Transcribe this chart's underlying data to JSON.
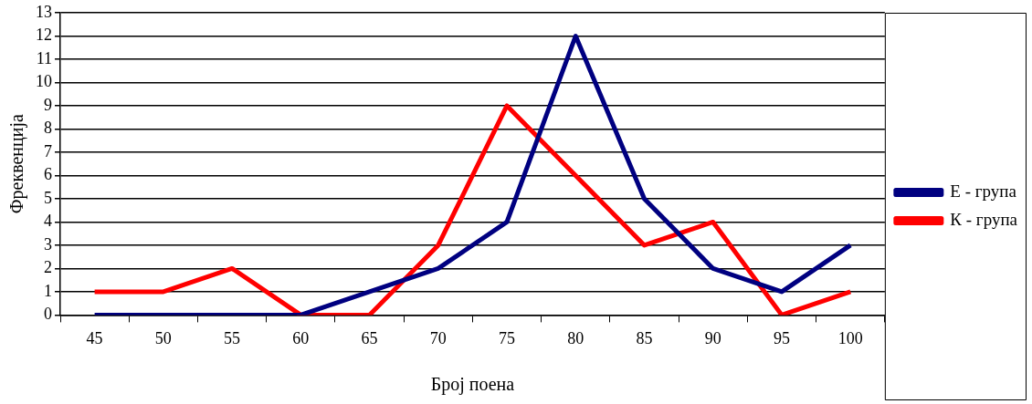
{
  "chart_data": {
    "type": "line",
    "xlabel": "Број поена",
    "ylabel": "Фреквенција",
    "categories": [
      "45",
      "50",
      "55",
      "60",
      "65",
      "70",
      "75",
      "80",
      "85",
      "90",
      "95",
      "100"
    ],
    "series": [
      {
        "name": "Е - група",
        "color": "#000080",
        "values": [
          0,
          0,
          0,
          0,
          1,
          2,
          4,
          12,
          5,
          2,
          1,
          3
        ]
      },
      {
        "name": "К - група",
        "color": "#ff0000",
        "values": [
          1,
          1,
          2,
          0,
          0,
          3,
          9,
          6,
          3,
          4,
          0,
          1
        ]
      }
    ],
    "ylim": [
      0,
      13
    ],
    "yticks": [
      0,
      1,
      2,
      3,
      4,
      5,
      6,
      7,
      8,
      9,
      10,
      11,
      12,
      13
    ],
    "grid": "y",
    "legend": "right",
    "marker": "none",
    "line_style": "solid"
  }
}
